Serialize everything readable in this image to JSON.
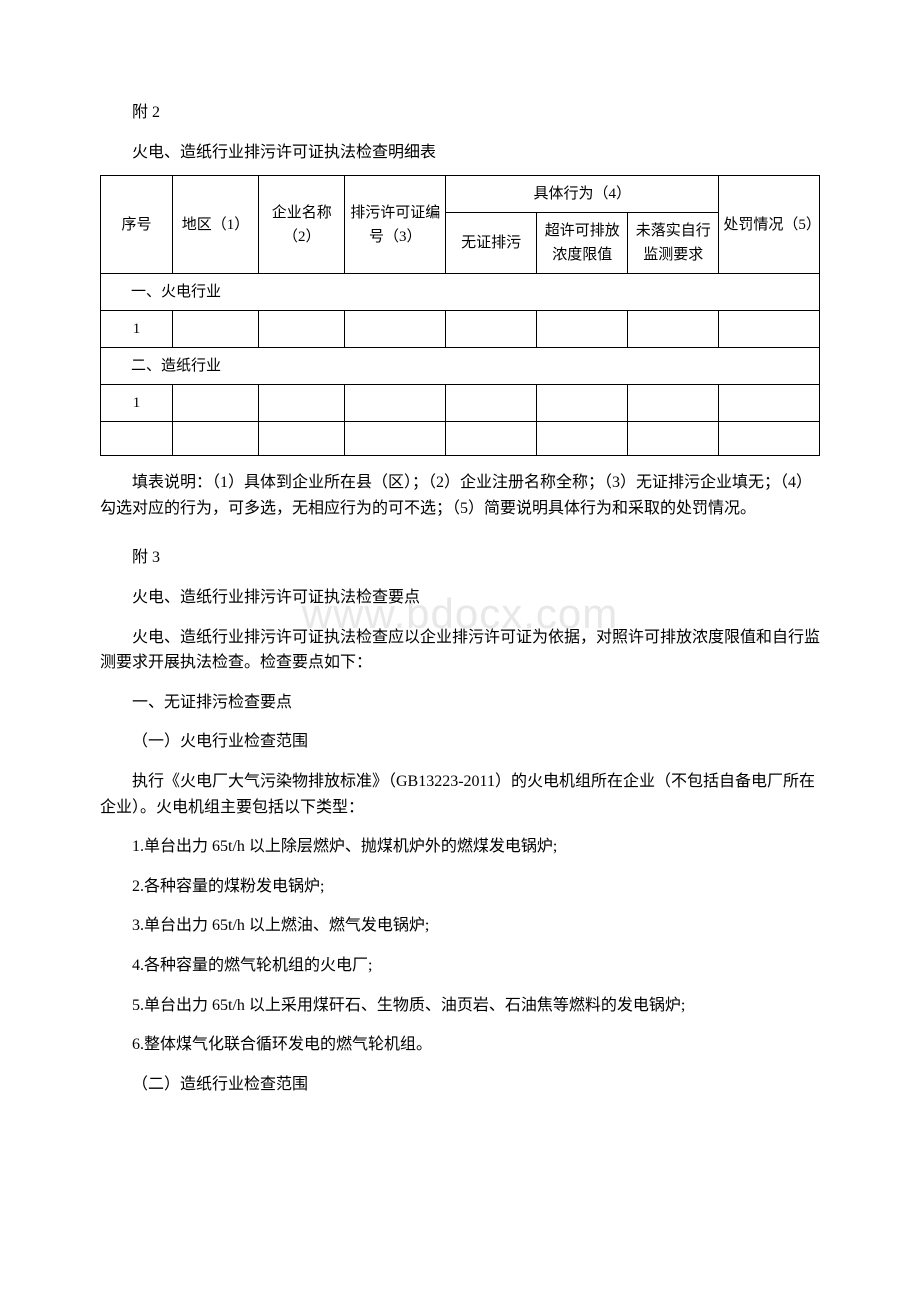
{
  "watermark": "www.bdocx.com",
  "attachment2": {
    "label": "附 2",
    "title": "火电、造纸行业排污许可证执法检查明细表"
  },
  "table": {
    "headers": {
      "serial": "序号",
      "region": "地区（1）",
      "company": "企业名称（2）",
      "permit": "排污许可证编号（3）",
      "behavior_group": "具体行为（4）",
      "no_permit": "无证排污",
      "exceed": "超许可排放",
      "exceed_sub": "浓度限值",
      "no_monitor": "未落实自行",
      "no_monitor_sub": "监测要求",
      "penalty": "处罚情况（5）"
    },
    "section1": "一、火电行业",
    "row1_num": "1",
    "section2": "二、造纸行业",
    "row2_num": "1"
  },
  "explain_text": "填表说明：（1）具体到企业所在县（区）；（2）企业注册名称全称；（3）无证排污企业填无；（4）勾选对应的行为，可多选，无相应行为的可不选；（5）简要说明具体行为和采取的处罚情况。",
  "attachment3": {
    "label": "附 3",
    "title": "火电、造纸行业排污许可证执法检查要点",
    "intro": "火电、造纸行业排污许可证执法检查应以企业排污许可证为依据，对照许可排放浓度限值和自行监测要求开展执法检查。检查要点如下：",
    "h1": "一、无证排污检查要点",
    "h2": "（一）火电行业检查范围",
    "p1": "执行《火电厂大气污染物排放标准》（GB13223-2011）的火电机组所在企业（不包括自备电厂所在企业）。火电机组主要包括以下类型：",
    "li1": "1.单台出力 65t/h 以上除层燃炉、抛煤机炉外的燃煤发电锅炉;",
    "li2": "2.各种容量的煤粉发电锅炉;",
    "li3": "3.单台出力 65t/h 以上燃油、燃气发电锅炉;",
    "li4": "4.各种容量的燃气轮机组的火电厂;",
    "li5": "5.单台出力 65t/h 以上采用煤矸石、生物质、油页岩、石油焦等燃料的发电锅炉;",
    "li6": "6.整体煤气化联合循环发电的燃气轮机组。",
    "h3": "（二）造纸行业检查范围"
  }
}
